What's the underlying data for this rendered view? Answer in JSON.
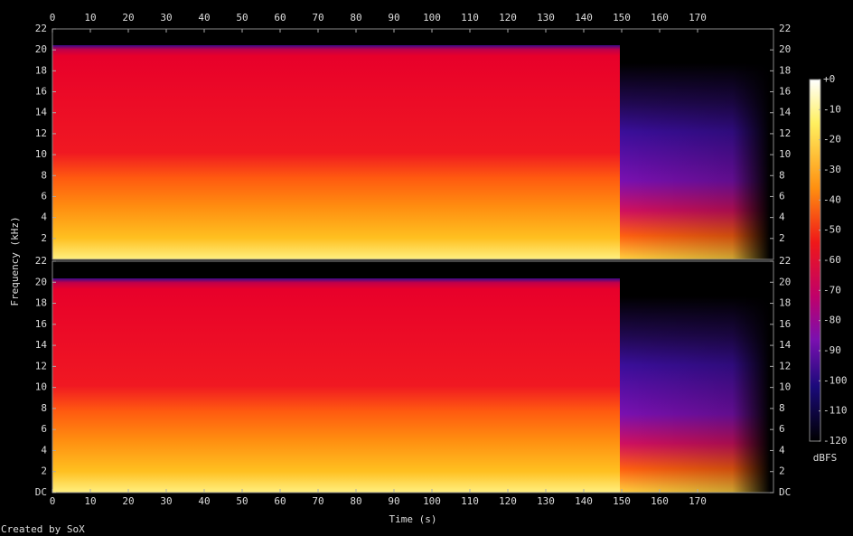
{
  "chart_data": {
    "type": "spectrogram",
    "xlabel": "Time (s)",
    "ylabel": "Frequency (kHz)",
    "xlim": [
      0,
      190
    ],
    "xticks": [
      0,
      10,
      20,
      30,
      40,
      50,
      60,
      70,
      80,
      90,
      100,
      110,
      120,
      130,
      140,
      150,
      160,
      170
    ],
    "channels": [
      {
        "ylim": [
          0,
          22
        ],
        "yticks": [
          2,
          4,
          6,
          8,
          10,
          12,
          14,
          16,
          18,
          20,
          22
        ]
      },
      {
        "ylim": [
          0,
          22
        ],
        "yticks": [
          {
            "value": 0,
            "label": "DC"
          },
          2,
          4,
          6,
          8,
          10,
          12,
          14,
          16,
          18,
          20,
          22
        ]
      }
    ],
    "colorbar": {
      "label": "dBFS",
      "lim": [
        -120,
        0
      ],
      "ticks": [
        {
          "value": 0,
          "label": "+0"
        },
        -10,
        -20,
        -30,
        -40,
        -50,
        -60,
        -70,
        -80,
        -90,
        -100,
        -110,
        -120
      ]
    },
    "footer": "Created by SoX"
  }
}
